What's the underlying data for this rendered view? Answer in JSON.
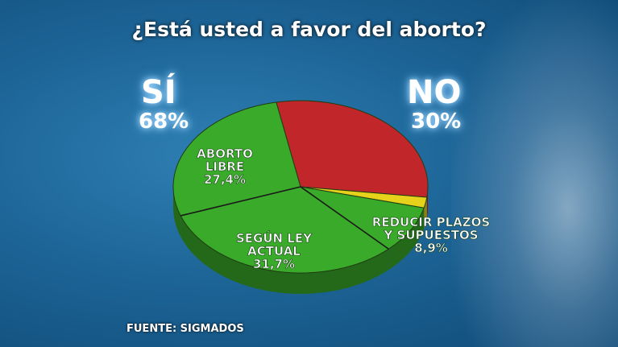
{
  "title": "¿Está usted a favor del aborto?",
  "yes": {
    "label": "SÍ",
    "percent": "68%"
  },
  "no": {
    "label": "NO",
    "percent": "30%"
  },
  "source": "FUENTE: SIGMADOS",
  "colors": {
    "background": "#1d6597",
    "no": "#c0262a",
    "undecided": "#e6d21a",
    "reducir_plazos": "#3aaa2a",
    "segun_ley": "#3aaa2a",
    "aborto_libre": "#3aaa2a"
  },
  "chart_data": {
    "type": "pie",
    "title": "¿Está usted a favor del aborto?",
    "slices": [
      {
        "name": "NO",
        "value": 30.0,
        "color": "#c0262a",
        "label": ""
      },
      {
        "name": "",
        "value": 2.0,
        "color": "#e6d21a",
        "label": ""
      },
      {
        "name": "REDUCIR PLAZOS Y SUPUESTOS",
        "value": 8.9,
        "color": "#3aaa2a",
        "label": "8,9%"
      },
      {
        "name": "SEGÚN LEY ACTUAL",
        "value": 31.7,
        "color": "#3aaa2a",
        "label": "31,7%"
      },
      {
        "name": "ABORTO LIBRE",
        "value": 27.4,
        "color": "#3aaa2a",
        "label": "27,4%"
      }
    ],
    "slice_labels": [
      {
        "lines": [
          "ABORTO",
          "LIBRE",
          "27,4%"
        ]
      },
      {
        "lines": [
          "SEGÚN LEY",
          "ACTUAL",
          "31,7%"
        ]
      },
      {
        "lines": [
          "REDUCIR PLAZOS",
          "Y SUPUESTOS",
          "8,9%"
        ]
      }
    ]
  }
}
